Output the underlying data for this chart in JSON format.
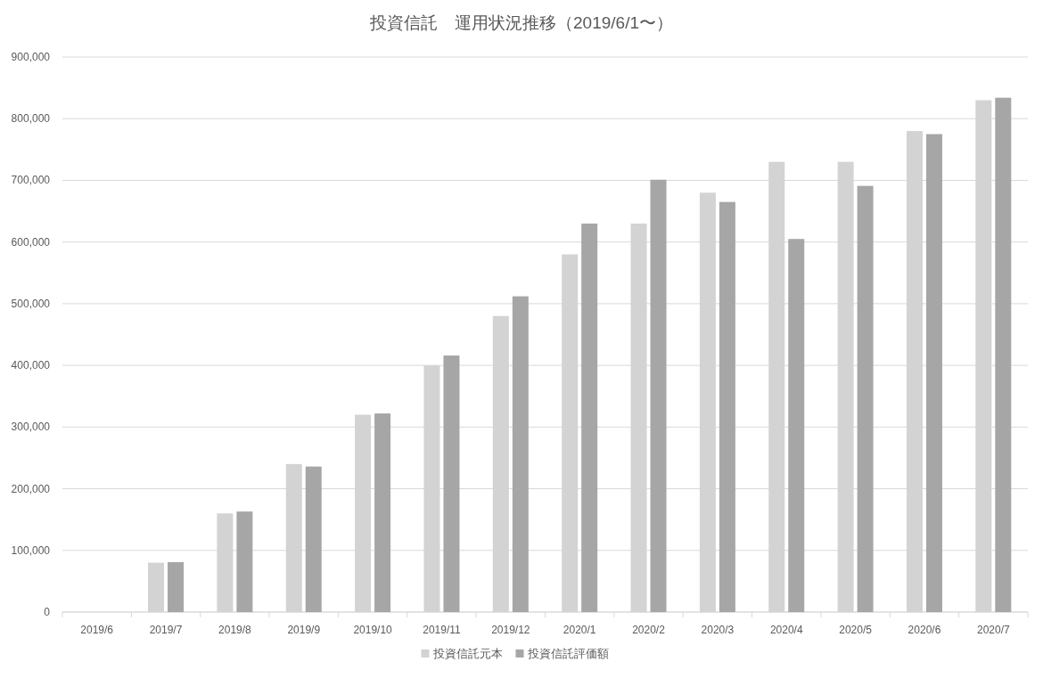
{
  "chart_data": {
    "type": "bar",
    "title": "投資信託　運用状況推移（2019/6/1〜）",
    "categories": [
      "2019/6",
      "2019/7",
      "2019/8",
      "2019/9",
      "2019/10",
      "2019/11",
      "2019/12",
      "2020/1",
      "2020/2",
      "2020/3",
      "2020/4",
      "2020/5",
      "2020/6",
      "2020/7"
    ],
    "series": [
      {
        "name": "投資信託元本",
        "color": "#d3d3d3",
        "values": [
          0,
          80000,
          160000,
          240000,
          320000,
          400000,
          480000,
          580000,
          630000,
          680000,
          730000,
          730000,
          780000,
          830000
        ]
      },
      {
        "name": "投資信託評価額",
        "color": "#a6a6a6",
        "values": [
          0,
          81000,
          163000,
          236000,
          322000,
          416000,
          512000,
          630000,
          701000,
          665000,
          605000,
          691000,
          775000,
          834000
        ]
      }
    ],
    "ylim": [
      0,
      900000
    ],
    "yticks": [
      {
        "value": 0,
        "label": "0"
      },
      {
        "value": 100000,
        "label": "100,000"
      },
      {
        "value": 200000,
        "label": "200,000"
      },
      {
        "value": 300000,
        "label": "300,000"
      },
      {
        "value": 400000,
        "label": "400,000"
      },
      {
        "value": 500000,
        "label": "500,000"
      },
      {
        "value": 600000,
        "label": "600,000"
      },
      {
        "value": 700000,
        "label": "700,000"
      },
      {
        "value": 800000,
        "label": "800,000"
      },
      {
        "value": 900000,
        "label": "900,000"
      }
    ],
    "grid": "y",
    "legend": "bottom"
  }
}
